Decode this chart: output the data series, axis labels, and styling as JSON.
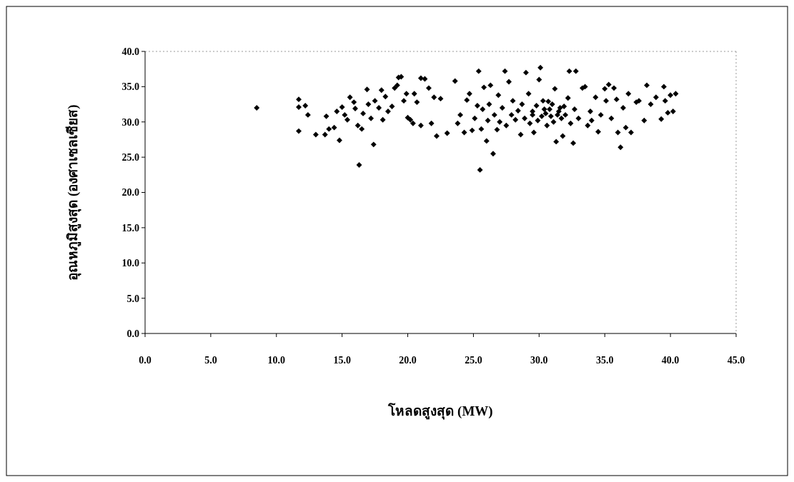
{
  "chart_data": {
    "type": "scatter",
    "xlabel": "โหลดสูงสุด (MW)",
    "ylabel": "อุณหภูมิสูงสุด (องศาเซลเซียส)",
    "marker": "diamond",
    "grid": false,
    "xlim": [
      0,
      45
    ],
    "xticks": [
      {
        "value": 0,
        "label": "0.0"
      },
      {
        "value": 5,
        "label": "5.0"
      },
      {
        "value": 10,
        "label": "10.0"
      },
      {
        "value": 15,
        "label": "15.0"
      },
      {
        "value": 20,
        "label": "20.0"
      },
      {
        "value": 25,
        "label": "25.0"
      },
      {
        "value": 30,
        "label": "30.0"
      },
      {
        "value": 35,
        "label": "35.0"
      },
      {
        "value": 40,
        "label": "40.0"
      },
      {
        "value": 45,
        "label": "45.0"
      }
    ],
    "ylim": [
      0,
      40
    ],
    "yticks": [
      {
        "value": 0,
        "label": "0.0"
      },
      {
        "value": 5,
        "label": "5.0"
      },
      {
        "value": 10,
        "label": "10.0"
      },
      {
        "value": 15,
        "label": "15.0"
      },
      {
        "value": 20,
        "label": "20.0"
      },
      {
        "value": 25,
        "label": "25.0"
      },
      {
        "value": 30,
        "label": "30.0"
      },
      {
        "value": 35,
        "label": "35.0"
      },
      {
        "value": 40,
        "label": "40.0"
      }
    ],
    "series": [
      {
        "color": "#000000",
        "x": [
          8.5,
          11.7,
          11.7,
          12.2,
          11.7,
          12.4,
          13.0,
          13.7,
          13.8,
          14.0,
          14.4,
          14.6,
          14.8,
          15.0,
          15.2,
          15.4,
          15.6,
          15.9,
          16.0,
          16.2,
          16.3,
          16.5,
          16.6,
          16.9,
          17.0,
          17.2,
          17.4,
          17.5,
          17.8,
          18.0,
          18.1,
          18.3,
          18.5,
          18.8,
          19.0,
          19.2,
          19.3,
          19.5,
          19.7,
          19.9,
          20.0,
          20.2,
          20.4,
          20.5,
          20.7,
          21.0,
          21.3,
          21.0,
          21.6,
          21.8,
          22.0,
          22.2,
          22.5,
          23.0,
          23.6,
          23.8,
          24.0,
          24.3,
          24.5,
          24.7,
          24.9,
          25.1,
          25.3,
          25.4,
          25.5,
          25.6,
          25.7,
          25.8,
          26.0,
          26.1,
          26.2,
          26.3,
          26.5,
          26.6,
          26.8,
          26.9,
          27.0,
          27.2,
          27.4,
          27.5,
          27.7,
          27.9,
          28.0,
          28.2,
          28.4,
          28.6,
          28.7,
          28.9,
          29.0,
          29.2,
          29.3,
          29.5,
          29.6,
          29.8,
          30.0,
          30.1,
          30.2,
          30.3,
          30.5,
          30.6,
          30.8,
          31.0,
          31.1,
          31.2,
          31.3,
          31.5,
          31.6,
          31.8,
          32.0,
          32.2,
          32.3,
          32.4,
          32.6,
          32.7,
          32.8,
          33.0,
          33.3,
          33.5,
          33.7,
          33.9,
          34.0,
          34.3,
          34.5,
          34.7,
          35.0,
          35.1,
          35.3,
          35.5,
          35.7,
          35.9,
          36.0,
          36.2,
          36.4,
          36.6,
          36.8,
          37.0,
          37.4,
          37.6,
          38.0,
          38.2,
          38.5,
          38.9,
          39.3,
          39.5,
          39.6,
          39.8,
          40.0,
          40.4,
          40.2,
          29.5,
          30.4,
          30.9,
          31.4,
          31.9,
          30.7,
          29.9,
          31.7
        ],
        "values": [
          32.0,
          33.2,
          32.1,
          32.3,
          28.7,
          31.0,
          28.2,
          28.2,
          30.8,
          29.0,
          29.2,
          31.5,
          27.4,
          32.1,
          31.0,
          30.3,
          33.5,
          32.8,
          31.9,
          29.5,
          23.9,
          29.0,
          31.2,
          34.6,
          32.5,
          30.5,
          26.8,
          33.0,
          32.0,
          34.5,
          30.3,
          33.6,
          31.5,
          32.2,
          34.8,
          35.2,
          36.3,
          36.4,
          33.0,
          34.0,
          30.6,
          30.3,
          29.8,
          34.0,
          32.8,
          36.2,
          36.1,
          29.5,
          34.8,
          29.8,
          33.5,
          28.0,
          33.3,
          28.4,
          35.8,
          29.8,
          31.0,
          28.5,
          33.1,
          34.0,
          28.8,
          30.5,
          32.3,
          37.2,
          23.2,
          29.0,
          31.8,
          34.9,
          27.3,
          30.2,
          32.5,
          35.2,
          25.5,
          31.0,
          28.9,
          33.8,
          30.0,
          32.0,
          37.2,
          29.5,
          35.7,
          31.0,
          33.0,
          30.3,
          31.6,
          28.2,
          32.5,
          30.5,
          37.0,
          34.0,
          29.8,
          31.5,
          28.5,
          32.3,
          36.0,
          37.7,
          30.8,
          33.0,
          31.2,
          29.5,
          31.8,
          32.5,
          30.0,
          34.7,
          27.2,
          31.5,
          32.0,
          28.0,
          31.0,
          33.4,
          37.2,
          29.8,
          27.0,
          31.8,
          37.2,
          30.5,
          34.8,
          35.0,
          29.5,
          31.5,
          30.2,
          33.5,
          28.6,
          31.0,
          34.7,
          33.0,
          35.3,
          30.5,
          34.8,
          33.2,
          28.5,
          26.4,
          32.0,
          29.2,
          34.0,
          28.5,
          32.8,
          33.0,
          30.2,
          35.2,
          32.5,
          33.5,
          30.4,
          35.0,
          33.0,
          31.3,
          33.8,
          34.0,
          31.5,
          31.0,
          31.8,
          30.8,
          31.0,
          32.2,
          32.9,
          30.2,
          30.5
        ]
      }
    ]
  }
}
